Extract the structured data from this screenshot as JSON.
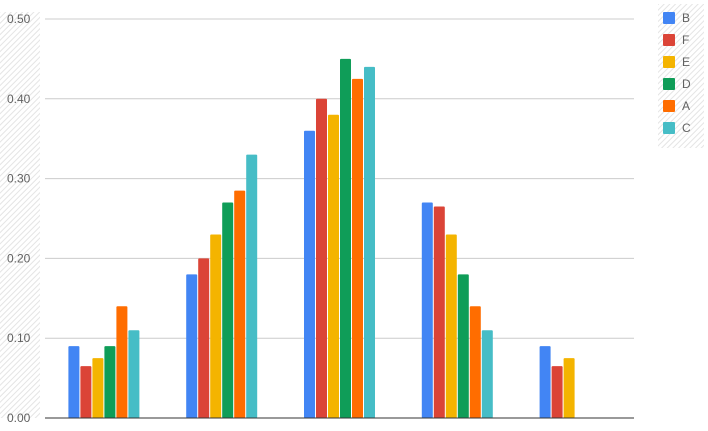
{
  "chart_data": {
    "type": "bar",
    "categories": [
      "",
      "",
      "",
      "",
      ""
    ],
    "series": [
      {
        "name": "B",
        "color": "#4285F4",
        "values": [
          0.09,
          0.18,
          0.36,
          0.27,
          0.09
        ]
      },
      {
        "name": "F",
        "color": "#DB4437",
        "values": [
          0.065,
          0.2,
          0.4,
          0.265,
          0.065
        ]
      },
      {
        "name": "E",
        "color": "#F4B400",
        "values": [
          0.075,
          0.23,
          0.38,
          0.23,
          0.075
        ]
      },
      {
        "name": "D",
        "color": "#0F9D58",
        "values": [
          0.09,
          0.27,
          0.45,
          0.18,
          0.0
        ]
      },
      {
        "name": "A",
        "color": "#FF6D00",
        "values": [
          0.14,
          0.285,
          0.425,
          0.14,
          0.0
        ]
      },
      {
        "name": "C",
        "color": "#46BDC6",
        "values": [
          0.11,
          0.33,
          0.44,
          0.11,
          0.0
        ]
      }
    ],
    "ylim": [
      0,
      0.5
    ],
    "yticks": [
      "0.00",
      "0.10",
      "0.20",
      "0.30",
      "0.40",
      "0.50"
    ],
    "title": "",
    "xlabel": "",
    "ylabel": "",
    "grid": true,
    "legend_position": "right"
  }
}
